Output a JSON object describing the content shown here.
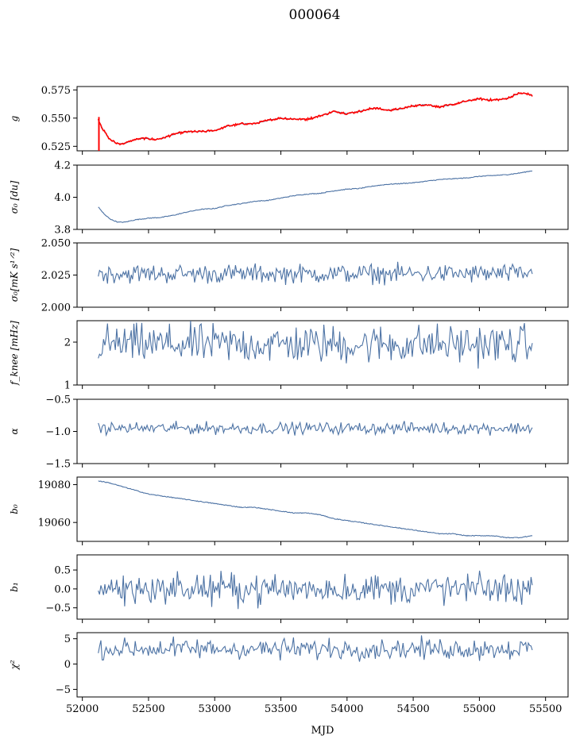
{
  "figure_title": "000064",
  "xlabel": "MJD",
  "colors": {
    "series": "#4c72a4",
    "fit": "#ff0000",
    "axes": "#000000"
  },
  "chart_data": [
    {
      "id": "g",
      "type": "line",
      "ylabel": "g",
      "yticks": [
        0.525,
        0.55,
        0.575
      ],
      "ytick_labels": [
        "0.525",
        "0.550",
        "0.575"
      ],
      "ylim": [
        0.521,
        0.578
      ],
      "xlim": [
        51960,
        55670
      ],
      "x": [
        52120,
        52150,
        52200,
        52250,
        52300,
        52350,
        52400,
        52450,
        52500,
        52550,
        52600,
        52700,
        52800,
        52900,
        53000,
        53100,
        53200,
        53300,
        53400,
        53500,
        53600,
        53700,
        53800,
        53900,
        54000,
        54100,
        54200,
        54300,
        54400,
        54500,
        54600,
        54700,
        54800,
        54900,
        55000,
        55100,
        55200,
        55300,
        55350,
        55400
      ],
      "y": [
        0.549,
        0.541,
        0.532,
        0.528,
        0.527,
        0.529,
        0.531,
        0.532,
        0.532,
        0.531,
        0.532,
        0.536,
        0.538,
        0.538,
        0.539,
        0.543,
        0.545,
        0.545,
        0.548,
        0.55,
        0.549,
        0.549,
        0.552,
        0.556,
        0.554,
        0.556,
        0.559,
        0.557,
        0.558,
        0.561,
        0.562,
        0.56,
        0.562,
        0.565,
        0.567,
        0.566,
        0.567,
        0.572,
        0.572,
        0.57
      ],
      "fit_series": {
        "name": "model",
        "color": "#ff0000"
      }
    },
    {
      "id": "sigma0-du",
      "type": "line",
      "ylabel": "σ₀ [du]",
      "yticks": [
        3.8,
        4.0,
        4.2
      ],
      "ytick_labels": [
        "3.8",
        "4.0",
        "4.2"
      ],
      "ylim": [
        3.8,
        4.2
      ],
      "xlim": [
        51960,
        55670
      ],
      "x": [
        52120,
        52170,
        52220,
        52270,
        52320,
        52400,
        52500,
        52600,
        52700,
        52800,
        52900,
        53000,
        53100,
        53200,
        53300,
        53400,
        53500,
        53600,
        53700,
        53800,
        53900,
        54000,
        54100,
        54200,
        54300,
        54400,
        54500,
        54600,
        54700,
        54800,
        54900,
        55000,
        55100,
        55200,
        55300,
        55400
      ],
      "y": [
        3.94,
        3.89,
        3.86,
        3.845,
        3.845,
        3.86,
        3.87,
        3.875,
        3.89,
        3.91,
        3.925,
        3.93,
        3.95,
        3.96,
        3.975,
        3.98,
        3.995,
        4.01,
        4.02,
        4.025,
        4.04,
        4.05,
        4.055,
        4.07,
        4.08,
        4.085,
        4.09,
        4.1,
        4.11,
        4.115,
        4.12,
        4.13,
        4.135,
        4.14,
        4.15,
        4.165
      ]
    },
    {
      "id": "sigma0-mk",
      "type": "line",
      "ylabel": "σ₀[mK s¹ᐟ²]",
      "yticks": [
        2.0,
        2.025,
        2.05
      ],
      "ytick_labels": [
        "2.000",
        "2.025",
        "2.050"
      ],
      "ylim": [
        2.0,
        2.05
      ],
      "xlim": [
        51960,
        55670
      ],
      "noise": {
        "x_start": 52120,
        "x_end": 55400,
        "mean": 2.026,
        "amplitude": 0.004,
        "count": 330
      }
    },
    {
      "id": "fknee",
      "type": "line",
      "ylabel": "f_knee [mHz]",
      "yticks": [
        1,
        2
      ],
      "ytick_labels": [
        "1",
        "2"
      ],
      "ylim": [
        1.0,
        2.5
      ],
      "xlim": [
        51960,
        55670
      ],
      "noise": {
        "x_start": 52120,
        "x_end": 55400,
        "mean": 1.95,
        "amplitude": 0.25,
        "count": 330
      }
    },
    {
      "id": "alpha",
      "type": "line",
      "ylabel": "α",
      "yticks": [
        -1.5,
        -1.0,
        -0.5
      ],
      "ytick_labels": [
        "−1.5",
        "−1.0",
        "−0.5"
      ],
      "ylim": [
        -1.5,
        -0.5
      ],
      "xlim": [
        51960,
        55670
      ],
      "noise": {
        "x_start": 52120,
        "x_end": 55400,
        "mean": -0.95,
        "amplitude": 0.05,
        "count": 330
      }
    },
    {
      "id": "b0",
      "type": "line",
      "ylabel": "b₀",
      "yticks": [
        19060,
        19080
      ],
      "ytick_labels": [
        "19060",
        "19080"
      ],
      "ylim": [
        19050,
        19084
      ],
      "xlim": [
        51960,
        55670
      ],
      "x": [
        52120,
        52200,
        52300,
        52400,
        52500,
        52600,
        52700,
        52800,
        52900,
        53000,
        53100,
        53200,
        53300,
        53400,
        53500,
        53600,
        53700,
        53800,
        53900,
        54000,
        54100,
        54200,
        54300,
        54400,
        54500,
        54600,
        54700,
        54800,
        54900,
        55000,
        55100,
        55200,
        55300,
        55400
      ],
      "y": [
        19082,
        19081,
        19079,
        19077,
        19075,
        19074,
        19073,
        19072,
        19071,
        19070,
        19069,
        19068,
        19068,
        19067,
        19066,
        19065,
        19065,
        19064,
        19062,
        19061,
        19060,
        19059,
        19058,
        19057,
        19056,
        19055,
        19054,
        19054,
        19053,
        19053,
        19053,
        19052,
        19052,
        19053
      ]
    },
    {
      "id": "b1",
      "type": "line",
      "ylabel": "b₁",
      "yticks": [
        -0.5,
        0.0,
        0.5
      ],
      "ytick_labels": [
        "−0.5",
        "0.0",
        "0.5"
      ],
      "ylim": [
        -0.8,
        0.9
      ],
      "xlim": [
        51960,
        55670
      ],
      "noise": {
        "x_start": 52120,
        "x_end": 55400,
        "mean": 0.0,
        "amplitude": 0.22,
        "count": 330
      }
    },
    {
      "id": "chi2",
      "type": "line",
      "ylabel": "χ²",
      "yticks": [
        -5,
        0,
        5
      ],
      "ytick_labels": [
        "−5",
        "0",
        "5"
      ],
      "ylim": [
        -6.5,
        6.2
      ],
      "xlim": [
        51960,
        55670
      ],
      "noise": {
        "x_start": 52120,
        "x_end": 55400,
        "mean": 3.0,
        "amplitude": 1.1,
        "count": 330
      }
    }
  ],
  "xaxis": {
    "ticks": [
      52000,
      52500,
      53000,
      53500,
      54000,
      54500,
      55000,
      55500
    ],
    "tick_labels": [
      "52000",
      "52500",
      "53000",
      "53500",
      "54000",
      "54500",
      "55000",
      "55500"
    ]
  }
}
